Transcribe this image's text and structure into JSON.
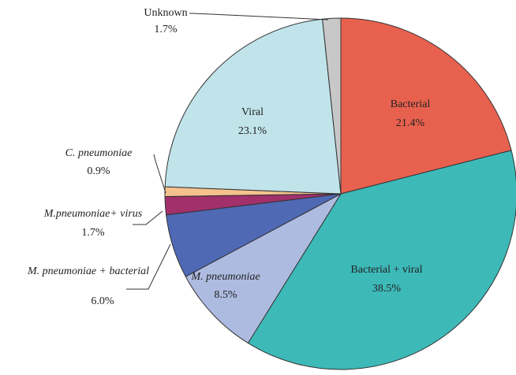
{
  "chart_data": {
    "type": "pie",
    "categories": [
      "Bacterial",
      "Bacterial + viral",
      "M. pneumoniae",
      "M. pneumoniae + bacterial",
      "M.pneumoniae+ virus",
      "C. pneumoniae",
      "Viral",
      "Unknown"
    ],
    "values": [
      21.4,
      38.5,
      8.5,
      6.0,
      1.7,
      0.9,
      23.1,
      1.7
    ],
    "value_labels": [
      "21.4%",
      "38.5%",
      "8.5%",
      "6.0%",
      "1.7%",
      "0.9%",
      "23.1%",
      "1.7%"
    ],
    "colors": [
      "#e8614f",
      "#3db9b8",
      "#aebbe1",
      "#4f69b5",
      "#a1306b",
      "#f5c18d",
      "#c0e4ea",
      "#c8c8c8"
    ]
  }
}
